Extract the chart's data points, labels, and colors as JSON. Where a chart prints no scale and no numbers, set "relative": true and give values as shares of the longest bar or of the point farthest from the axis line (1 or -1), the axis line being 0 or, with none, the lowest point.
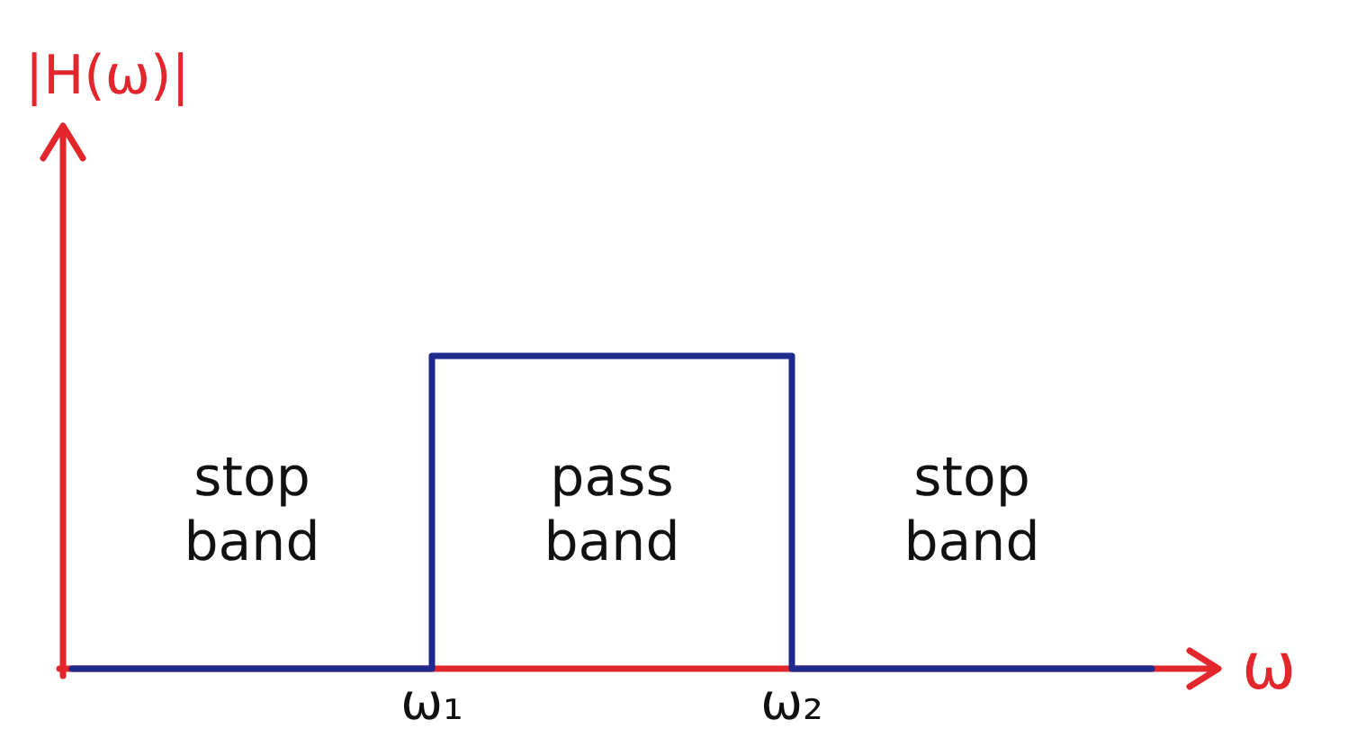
{
  "chart_data": {
    "type": "step",
    "xlabel": "ω",
    "ylabel": "|H(ω)|",
    "relative": true,
    "categories": [
      null,
      "ω₁",
      "ω₂",
      null
    ],
    "values": [
      0,
      1,
      0,
      0
    ],
    "color": "#1f2a8f",
    "annotations": [
      "stop band",
      "pass band",
      "stop band"
    ]
  }
}
